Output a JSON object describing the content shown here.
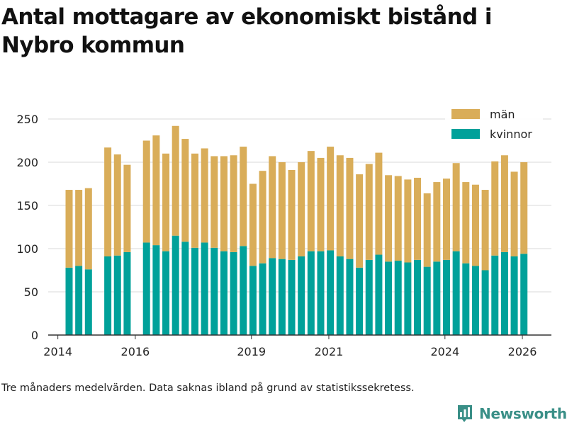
{
  "title": "Antal mottagare av ekonomiskt bistånd i Nybro kommun",
  "footnote": "Tre månaders medelvärden. Data saknas ibland på grund av statistikssekretess.",
  "brand": {
    "name": "Newsworthy",
    "icon": "newsworthy-logo-icon"
  },
  "colors": {
    "man": "#d9ad59",
    "kvinnor": "#00a19a",
    "grid": "#d9d9d9",
    "axis": "#333333",
    "brand": "#3a8f87"
  },
  "chart_data": {
    "type": "bar",
    "stacked": true,
    "title": "Antal mottagare av ekonomiskt bistånd i Nybro kommun",
    "xlabel": "",
    "ylabel": "",
    "ylim": [
      0,
      250
    ],
    "yticks": [
      0,
      50,
      100,
      150,
      200,
      250
    ],
    "xlim": [
      2013.75,
      2026.75
    ],
    "xticks": [
      2014,
      2016,
      2019,
      2021,
      2024,
      2026
    ],
    "grid": true,
    "legend": {
      "position": "top-right",
      "entries": [
        "män",
        "kvinnor"
      ]
    },
    "x": [
      2014.29,
      2014.54,
      2014.79,
      2015.29,
      2015.54,
      2015.79,
      2016.29,
      2016.54,
      2016.79,
      2017.04,
      2017.29,
      2017.54,
      2017.79,
      2018.04,
      2018.29,
      2018.54,
      2018.79,
      2019.04,
      2019.29,
      2019.54,
      2019.79,
      2020.04,
      2020.29,
      2020.54,
      2020.79,
      2021.04,
      2021.29,
      2021.54,
      2021.79,
      2022.04,
      2022.29,
      2022.54,
      2022.79,
      2023.04,
      2023.29,
      2023.54,
      2023.79,
      2024.04,
      2024.29,
      2024.54,
      2024.79,
      2025.04,
      2025.29,
      2025.54,
      2025.79,
      2026.04
    ],
    "series": [
      {
        "name": "kvinnor",
        "values": [
          78,
          80,
          76,
          91,
          92,
          96,
          107,
          104,
          97,
          115,
          108,
          101,
          107,
          101,
          97,
          96,
          103,
          80,
          83,
          89,
          88,
          87,
          91,
          97,
          97,
          98,
          91,
          88,
          78,
          87,
          93,
          85,
          86,
          84,
          87,
          79,
          85,
          87,
          97,
          83,
          80,
          75,
          92,
          96,
          91,
          94
        ]
      },
      {
        "name": "män",
        "values": [
          90,
          88,
          94,
          126,
          117,
          101,
          118,
          127,
          113,
          127,
          119,
          109,
          109,
          106,
          110,
          112,
          115,
          95,
          107,
          118,
          112,
          104,
          109,
          116,
          108,
          120,
          117,
          117,
          108,
          111,
          118,
          100,
          98,
          96,
          95,
          85,
          92,
          94,
          102,
          94,
          94,
          93,
          109,
          112,
          98,
          106
        ]
      }
    ]
  }
}
